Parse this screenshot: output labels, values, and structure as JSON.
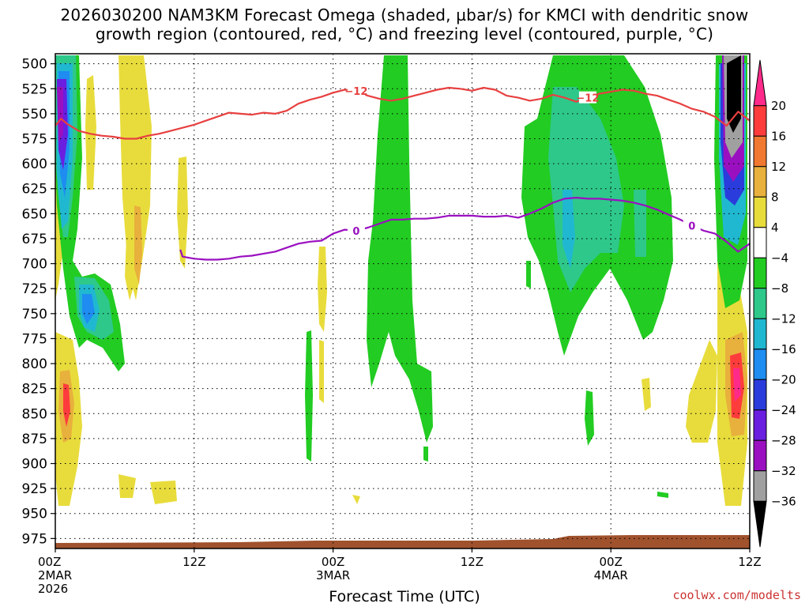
{
  "header": {
    "title_line1": "2026030200 NAM3KM Forecast Omega (shaded, µbar/s) for KMCI with dendritic snow",
    "title_line2": "growth region (contoured, red, °C) and freezing level (contoured, purple, °C)"
  },
  "chart_data": {
    "type": "heatmap",
    "title": "2026030200 NAM3KM Forecast Omega (shaded, µbar/s) for KMCI with dendritic snow growth region (contoured, red, °C) and freezing level (contoured, purple, °C)",
    "xlabel": "Forecast Time (UTC)",
    "ylabel": "",
    "x_unit": "hours from 2026-03-02 00Z",
    "xlim": [
      0,
      60
    ],
    "y_unit": "hPa",
    "ylim": [
      985,
      490
    ],
    "y_ticks": [
      500,
      525,
      550,
      575,
      600,
      625,
      650,
      675,
      700,
      725,
      750,
      775,
      800,
      825,
      850,
      875,
      900,
      925,
      950,
      975
    ],
    "x_ticks": [
      {
        "hour": 0,
        "lines": [
          "00Z",
          "2MAR",
          "2026"
        ]
      },
      {
        "hour": 12,
        "lines": [
          "12Z"
        ]
      },
      {
        "hour": 24,
        "lines": [
          "00Z",
          "3MAR"
        ]
      },
      {
        "hour": 36,
        "lines": [
          "12Z"
        ]
      },
      {
        "hour": 48,
        "lines": [
          "00Z",
          "4MAR"
        ]
      },
      {
        "hour": 60,
        "lines": [
          "12Z"
        ]
      }
    ],
    "grid": true,
    "colorbar": {
      "levels": [
        "20",
        "16",
        "12",
        "8",
        "4",
        "−4",
        "−8",
        "−12",
        "−16",
        "−20",
        "−24",
        "−28",
        "−32",
        "−36"
      ],
      "colors": [
        "#ff2a8a",
        "#ff3c3c",
        "#f07830",
        "#e8b03c",
        "#e8dc3c",
        "#ffffff",
        "#22cc22",
        "#2ec88a",
        "#20b8d0",
        "#1e8cf0",
        "#2a3cdc",
        "#6a1ee0",
        "#9a10c0",
        "#a0a0a0",
        "#000000"
      ],
      "placement": "right"
    },
    "contours": [
      {
        "name": "dendritic snow growth region",
        "color": "#e84040",
        "level_label": "−12",
        "points": [
          [
            0,
            562
          ],
          [
            0.5,
            555
          ],
          [
            1,
            560
          ],
          [
            2,
            567
          ],
          [
            3,
            570
          ],
          [
            4,
            572
          ],
          [
            5,
            573
          ],
          [
            6,
            575
          ],
          [
            7,
            575
          ],
          [
            8,
            572
          ],
          [
            9,
            570
          ],
          [
            10,
            567
          ],
          [
            12,
            561
          ],
          [
            14,
            553
          ],
          [
            15,
            549
          ],
          [
            16,
            550
          ],
          [
            17,
            551
          ],
          [
            18,
            549
          ],
          [
            19,
            550
          ],
          [
            20,
            547
          ],
          [
            21,
            540
          ],
          [
            22,
            536
          ],
          [
            23,
            533
          ],
          [
            24,
            529
          ],
          [
            25,
            526
          ],
          [
            26,
            527
          ],
          [
            27,
            532
          ],
          [
            28,
            535
          ],
          [
            29,
            537
          ],
          [
            30,
            535
          ],
          [
            31,
            532
          ],
          [
            32,
            529
          ],
          [
            33,
            526
          ],
          [
            34,
            524
          ],
          [
            35,
            525
          ],
          [
            36,
            527
          ],
          [
            37,
            524
          ],
          [
            38,
            526
          ],
          [
            39,
            532
          ],
          [
            40,
            534
          ],
          [
            41,
            537
          ],
          [
            42,
            535
          ],
          [
            43,
            531
          ],
          [
            44,
            534
          ],
          [
            45,
            538
          ],
          [
            46,
            534
          ],
          [
            47,
            530
          ],
          [
            48,
            528
          ],
          [
            49,
            526
          ],
          [
            50,
            527
          ],
          [
            51,
            530
          ],
          [
            52,
            532
          ],
          [
            53,
            536
          ],
          [
            54,
            540
          ],
          [
            55,
            545
          ],
          [
            56,
            548
          ],
          [
            57,
            553
          ],
          [
            58,
            562
          ],
          [
            59,
            548
          ],
          [
            60,
            557
          ]
        ]
      },
      {
        "name": "freezing level",
        "color": "#9a10c0",
        "level_label": "0",
        "points": [
          [
            10.8,
            686
          ],
          [
            11,
            693
          ],
          [
            12,
            695
          ],
          [
            13,
            696
          ],
          [
            14,
            696
          ],
          [
            15,
            695
          ],
          [
            16,
            693
          ],
          [
            17,
            692
          ],
          [
            18,
            690
          ],
          [
            19,
            688
          ],
          [
            20,
            684
          ],
          [
            21,
            680
          ],
          [
            22,
            678
          ],
          [
            23,
            677
          ],
          [
            24,
            670
          ],
          [
            25,
            666
          ],
          [
            26,
            667
          ],
          [
            27,
            664
          ],
          [
            28,
            660
          ],
          [
            29,
            656
          ],
          [
            30,
            656
          ],
          [
            31,
            655
          ],
          [
            32,
            655
          ],
          [
            33,
            654
          ],
          [
            34,
            652
          ],
          [
            35,
            652
          ],
          [
            36,
            652
          ],
          [
            37,
            653
          ],
          [
            38,
            653
          ],
          [
            39,
            652
          ],
          [
            40,
            654
          ],
          [
            41,
            650
          ],
          [
            42,
            645
          ],
          [
            43,
            639
          ],
          [
            44,
            635
          ],
          [
            45,
            634
          ],
          [
            46,
            635
          ],
          [
            47,
            635
          ],
          [
            48,
            636
          ],
          [
            49,
            637
          ],
          [
            50,
            639
          ],
          [
            51,
            642
          ],
          [
            52,
            646
          ],
          [
            53,
            651
          ],
          [
            54,
            656
          ],
          [
            55,
            662
          ],
          [
            56,
            667
          ],
          [
            57,
            670
          ],
          [
            58,
            678
          ],
          [
            59,
            688
          ],
          [
            60,
            680
          ]
        ]
      }
    ]
  },
  "footer": {
    "xlabel": "Forecast Time (UTC)",
    "credit": "coolwx.com/modelts"
  }
}
